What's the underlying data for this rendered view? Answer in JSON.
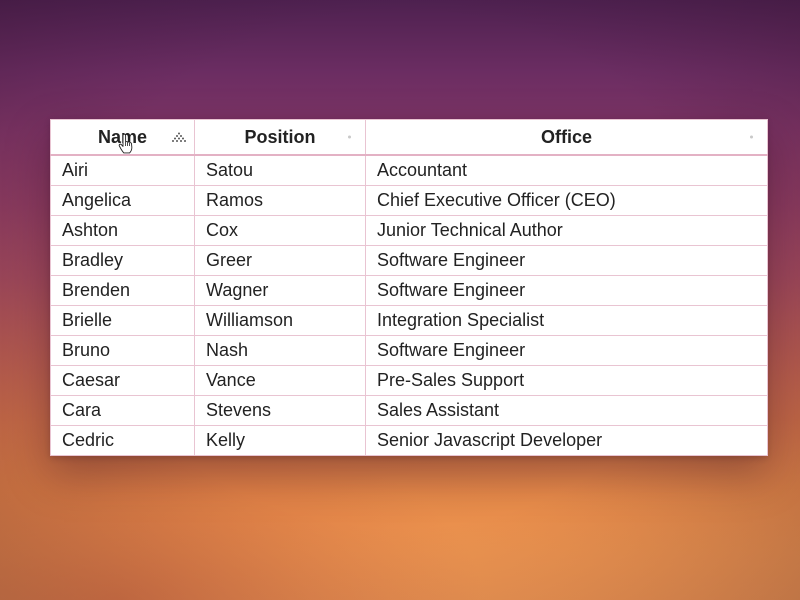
{
  "table": {
    "columns": [
      {
        "label": "Name"
      },
      {
        "label": "Position"
      },
      {
        "label": "Office"
      }
    ],
    "rows": [
      [
        "Airi",
        "Satou",
        "Accountant"
      ],
      [
        "Angelica",
        "Ramos",
        "Chief Executive Officer (CEO)"
      ],
      [
        "Ashton",
        "Cox",
        "Junior Technical Author"
      ],
      [
        "Bradley",
        "Greer",
        "Software Engineer"
      ],
      [
        "Brenden",
        "Wagner",
        "Software Engineer"
      ],
      [
        "Brielle",
        "Williamson",
        "Integration Specialist"
      ],
      [
        "Bruno",
        "Nash",
        "Software Engineer"
      ],
      [
        "Caesar",
        "Vance",
        "Pre-Sales Support"
      ],
      [
        "Cara",
        "Stevens",
        "Sales Assistant"
      ],
      [
        "Cedric",
        "Kelly",
        "Senior Javascript Developer"
      ]
    ]
  },
  "colors": {
    "border": "#e9c4d2",
    "header_border": "#e3b1c4",
    "text": "#222222"
  },
  "icons": {
    "sort_active": "sort-ascending-dots-icon",
    "sort_inactive": "sort-inactive-dot-icon",
    "cursor": "hand-pointer-cursor-icon"
  }
}
